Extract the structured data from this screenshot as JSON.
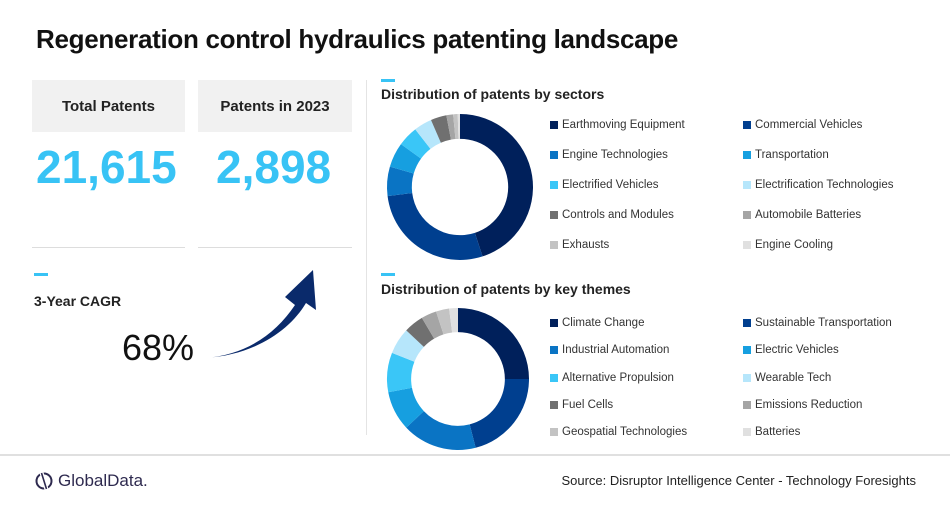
{
  "title": "Regeneration control hydraulics patenting landscape",
  "kpis": {
    "total_patents_label": "Total Patents",
    "total_patents_value": "21,615",
    "patents_2023_label": "Patents in 2023",
    "patents_2023_value": "2,898",
    "cagr_label": "3-Year CAGR",
    "cagr_value": "68%"
  },
  "colors": {
    "accent": "#38c3f5",
    "arrow": "#0a2a6b"
  },
  "chart_data": [
    {
      "type": "pie",
      "variant": "donut",
      "title": "Distribution  of patents by sectors",
      "legend_position": "right",
      "categories": [
        "Earthmoving Equipment",
        "Commercial Vehicles",
        "Engine Technologies",
        "Transportation",
        "Electrified Vehicles",
        "Electrification Technologies",
        "Controls and Modules",
        "Automobile Batteries",
        "Exhausts",
        "Engine Cooling"
      ],
      "values": [
        45,
        28,
        6.5,
        5.5,
        4.5,
        4,
        3.5,
        1.5,
        1,
        0.5
      ],
      "colors": [
        "#00205b",
        "#003f8f",
        "#0a74c4",
        "#169fe0",
        "#3ac6f7",
        "#b6e6fb",
        "#707070",
        "#a5a5a5",
        "#c3c3c3",
        "#e0e0e0"
      ]
    },
    {
      "type": "pie",
      "variant": "donut",
      "title": "Distribution  of patents by key themes",
      "legend_position": "right",
      "categories": [
        "Climate Change",
        "Sustainable Transportation",
        "Industrial Automation",
        "Electric Vehicles",
        "Alternative Propulsion",
        "Wearable Tech",
        "Fuel Cells",
        "Emissions Reduction",
        "Geospatial Technologies",
        "Batteries"
      ],
      "values": [
        25,
        21,
        17,
        9,
        9,
        6,
        4.5,
        3.5,
        3,
        2
      ],
      "colors": [
        "#00205b",
        "#003f8f",
        "#0a74c4",
        "#169fe0",
        "#3ac6f7",
        "#b6e6fb",
        "#707070",
        "#a5a5a5",
        "#c3c3c3",
        "#e0e0e0"
      ]
    }
  ],
  "footer": {
    "logo_text": "GlobalData.",
    "source": "Source: Disruptor Intelligence Center - Technology Foresights"
  }
}
